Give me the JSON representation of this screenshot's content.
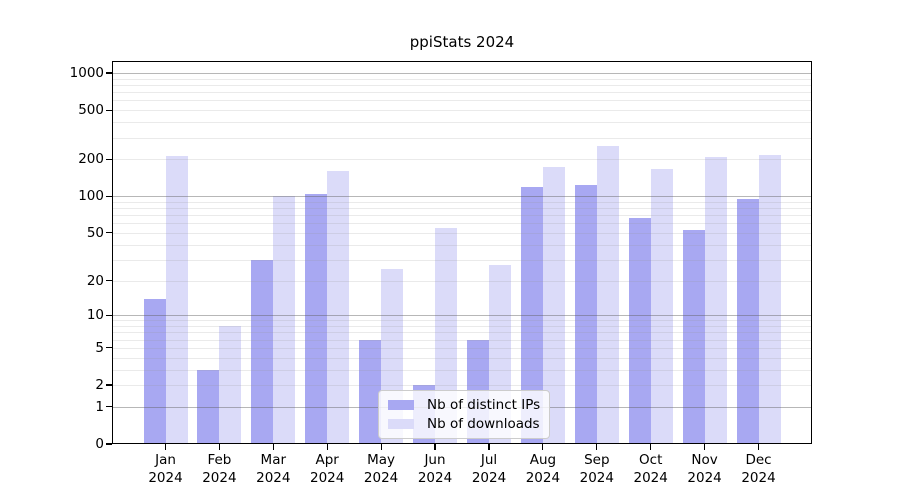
{
  "chart_data": {
    "type": "bar",
    "title": "ppiStats 2024",
    "categories": [
      "Jan 2024",
      "Feb 2024",
      "Mar 2024",
      "Apr 2024",
      "May 2024",
      "Jun 2024",
      "Jul 2024",
      "Aug 2024",
      "Sep 2024",
      "Oct 2024",
      "Nov 2024",
      "Dec 2024"
    ],
    "x_tick_month_labels": [
      "Jan",
      "Feb",
      "Mar",
      "Apr",
      "May",
      "Jun",
      "Jul",
      "Aug",
      "Sep",
      "Oct",
      "Nov",
      "Dec"
    ],
    "x_tick_year_label": "2024",
    "series": [
      {
        "name": "Nb of distinct IPs",
        "color": "#a8a8f2",
        "values": [
          14,
          3,
          30,
          105,
          6,
          2,
          6,
          119,
          123,
          66,
          53,
          95
        ]
      },
      {
        "name": "Nb of downloads",
        "color": "#dbdbf9",
        "values": [
          212,
          8,
          100,
          160,
          25,
          55,
          27,
          172,
          255,
          166,
          210,
          218
        ]
      }
    ],
    "xlabel": "",
    "ylabel": "",
    "y_scale": "log10(value+1)",
    "ylim": [
      0,
      1250
    ],
    "y_ticks": [
      0,
      1,
      2,
      5,
      10,
      20,
      50,
      100,
      200,
      500,
      1000
    ],
    "y_major_gridlines": [
      1,
      10,
      100,
      1000
    ],
    "y_minor_gridlines": [
      2,
      3,
      4,
      5,
      6,
      7,
      8,
      9,
      20,
      30,
      40,
      50,
      60,
      70,
      80,
      90,
      200,
      300,
      400,
      500,
      600,
      700,
      800,
      900
    ],
    "grid": true,
    "legend_position": "lower center"
  },
  "colors": {
    "axis": "#000000",
    "major_grid": "#b0b0b0",
    "minor_grid": "#e9e9e9",
    "background": "#ffffff"
  }
}
